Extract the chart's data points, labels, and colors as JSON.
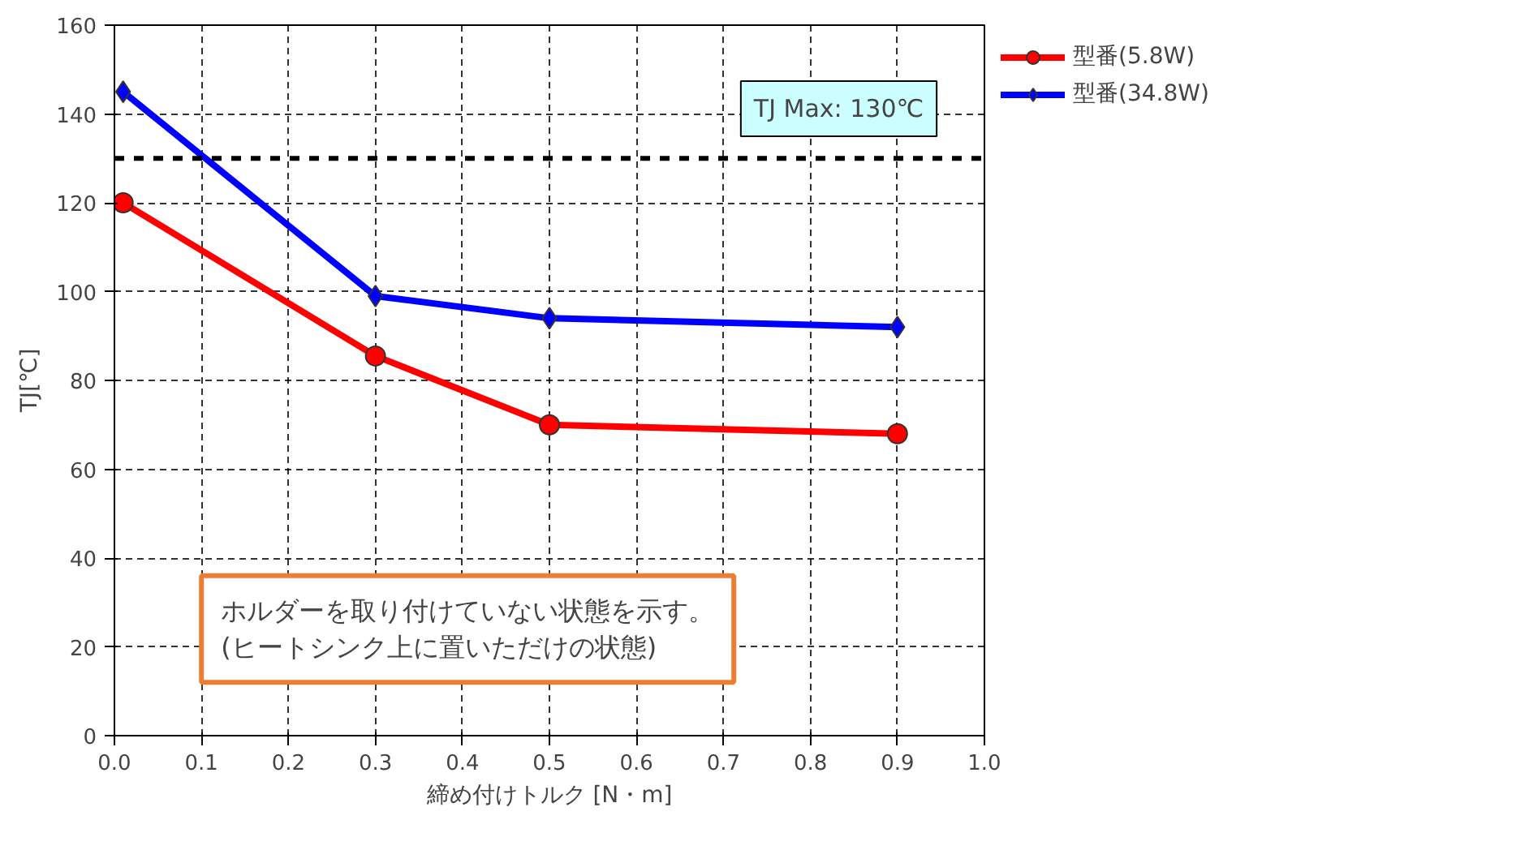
{
  "chart_data": {
    "type": "line",
    "xlabel": "締め付けトルク [N・m]",
    "ylabel": "TJ[℃]",
    "x": [
      0.01,
      0.3,
      0.5,
      0.9
    ],
    "series": [
      {
        "name": "型番(5.8W)",
        "color": "#ff0000",
        "values": [
          120,
          85.5,
          70,
          68
        ],
        "marker": "circle"
      },
      {
        "name": "型番(34.8W)",
        "color": "#0000ff",
        "values": [
          145,
          99,
          94,
          92
        ],
        "marker": "diamond"
      }
    ],
    "xlim": [
      0,
      1
    ],
    "xticks": [
      {
        "value": 0,
        "label": "0.0"
      },
      0.1,
      0.2,
      0.3,
      0.4,
      0.5,
      0.6,
      0.7,
      0.8,
      0.9,
      {
        "value": 1,
        "label": "1.0"
      }
    ],
    "ylim": [
      0,
      160
    ],
    "yticks": [
      0,
      20,
      40,
      60,
      80,
      100,
      120,
      140,
      160
    ],
    "ref_lines": [
      {
        "axis": "y",
        "value": 130,
        "label": "TJ Max: 130℃",
        "color": "#000000",
        "line_style": "dashed"
      }
    ],
    "annotations": [
      "ホルダーを取り付けていない状態を示す。\n(ヒートシンク上に置いただけの状態)"
    ],
    "grid": true,
    "legend": "top right",
    "line_style": "solid"
  }
}
